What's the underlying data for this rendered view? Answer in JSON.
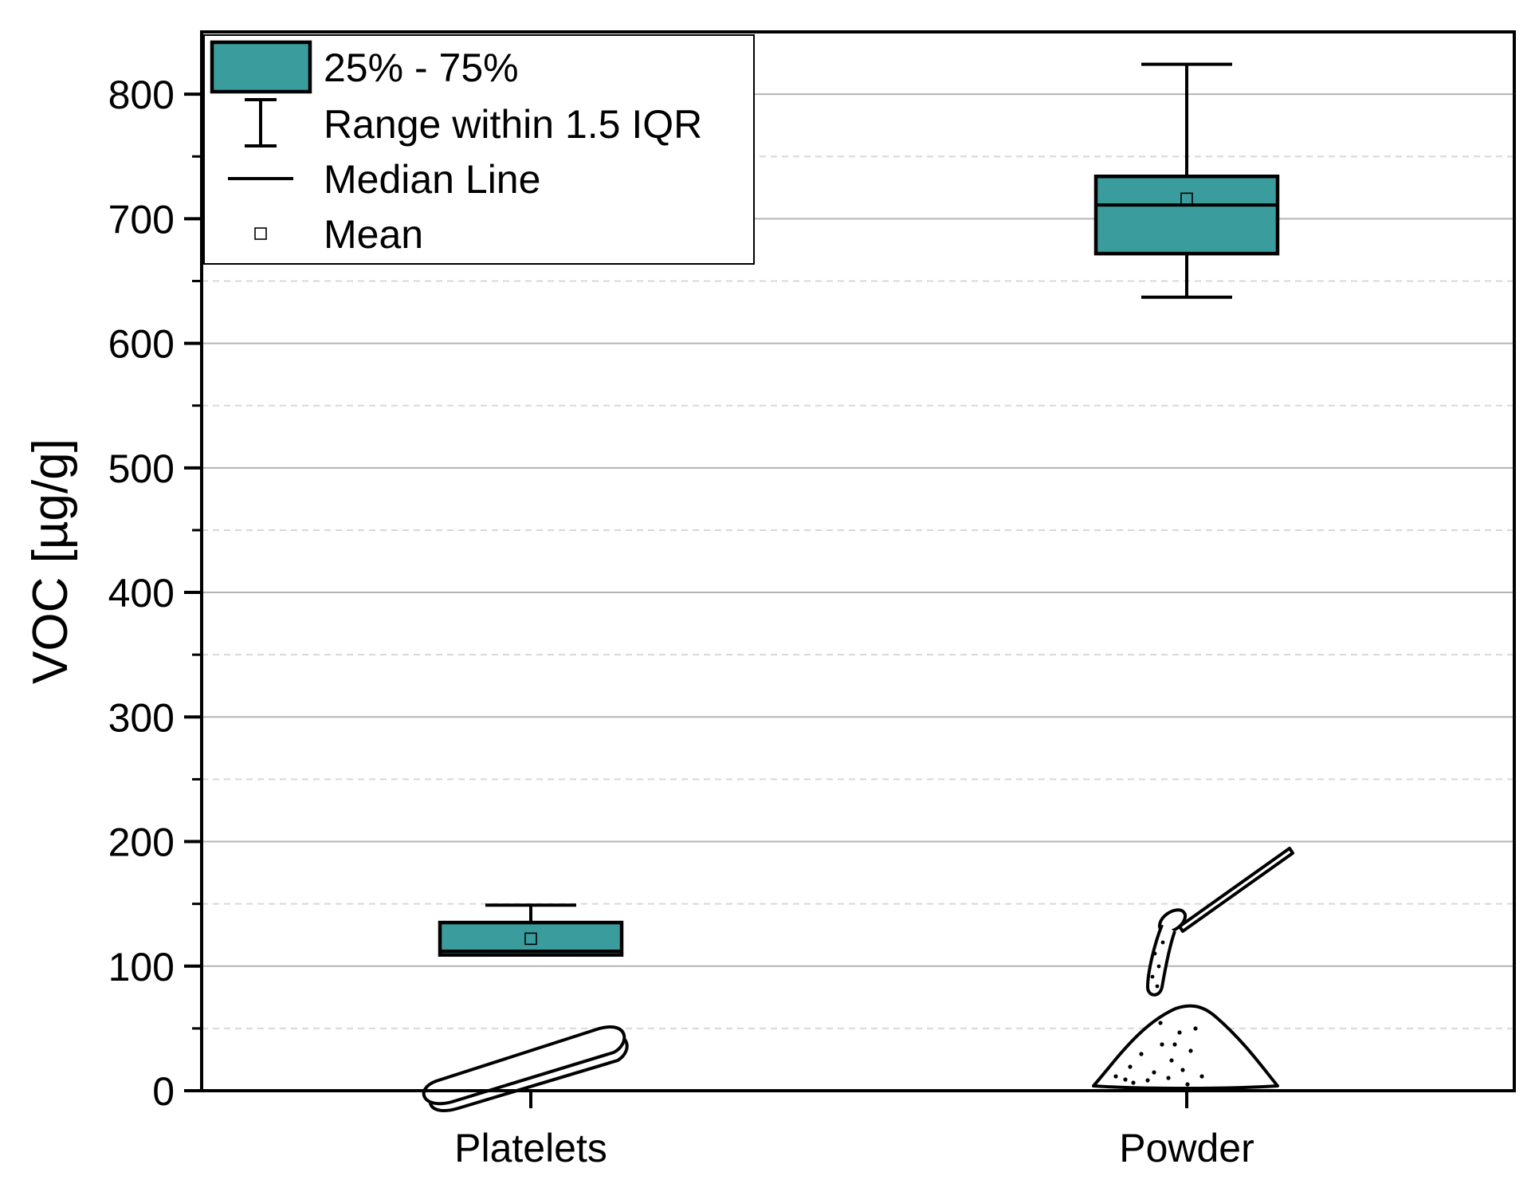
{
  "chart_data": {
    "type": "box",
    "ylabel": "VOC [µg/g]",
    "xlabel": "",
    "ylim": [
      0,
      850
    ],
    "yticks": [
      0,
      100,
      200,
      300,
      400,
      500,
      600,
      700,
      800
    ],
    "grid": "major solid, minor dashed",
    "legend_placement": "top-left",
    "box_color": "#3a9c9c",
    "categories": [
      "Platelets",
      "Powder"
    ],
    "boxes": [
      {
        "category": "Platelets",
        "whisker_low": 109,
        "q1": 109,
        "median": 112,
        "q3": 135,
        "whisker_high": 149,
        "mean": 122
      },
      {
        "category": "Powder",
        "whisker_low": 637,
        "q1": 672,
        "median": 711,
        "q3": 734,
        "whisker_high": 824,
        "mean": 716
      }
    ],
    "legend": [
      {
        "symbol": "box",
        "label": "25% - 75%"
      },
      {
        "symbol": "whisker",
        "label": "Range within 1.5 IQR"
      },
      {
        "symbol": "line",
        "label": "Median Line"
      },
      {
        "symbol": "square",
        "label": "Mean"
      }
    ],
    "illustrations": [
      "platelet-icon",
      "powder-pile-icon",
      "spoon-icon"
    ]
  }
}
